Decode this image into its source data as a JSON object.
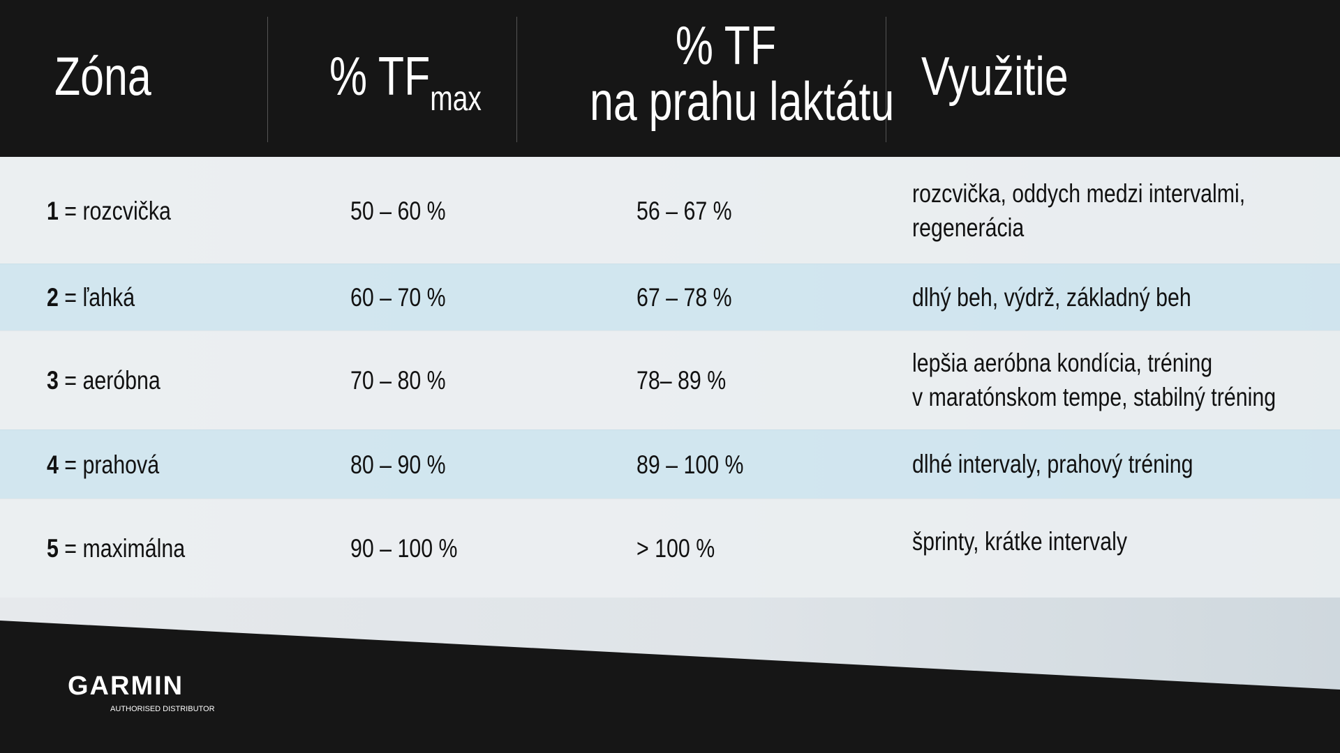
{
  "header": {
    "zone": "Zóna",
    "tfmax": {
      "main": "% TF",
      "sub": "max"
    },
    "lactate": {
      "line1": "% TF",
      "line2": "na prahu laktátu"
    },
    "use": "Využitie"
  },
  "table": {
    "rows": [
      {
        "number": "1",
        "name": "= rozcvička",
        "tfmax": "50 – 60 %",
        "lactate": "56 – 67 %",
        "use": [
          "rozcvička, oddych medzi intervalmi,",
          "regenerácia"
        ]
      },
      {
        "number": "2",
        "name": "= ľahká",
        "tfmax": "60 – 70 %",
        "lactate": "67 – 78 %",
        "use": [
          "dlhý beh, výdrž, základný beh"
        ]
      },
      {
        "number": "3",
        "name": "= aeróbna",
        "tfmax": "70 – 80 %",
        "lactate": "78– 89 %",
        "use": [
          "lepšia aeróbna kondícia, tréning",
          "v maratónskom tempe, stabilný tréning"
        ]
      },
      {
        "number": "4",
        "name": "= prahová",
        "tfmax": "80 – 90 %",
        "lactate": "89 – 100 %",
        "use": [
          "dlhé intervaly, prahový tréning"
        ]
      },
      {
        "number": "5",
        "name": "= maximálna",
        "tfmax": "90 – 100 %",
        "lactate": "> 100 %",
        "use": [
          "šprinty, krátke intervaly"
        ]
      }
    ]
  },
  "footer": {
    "brand": "GARMIN",
    "tagline": "AUTHORISED DISTRIBUTOR"
  }
}
